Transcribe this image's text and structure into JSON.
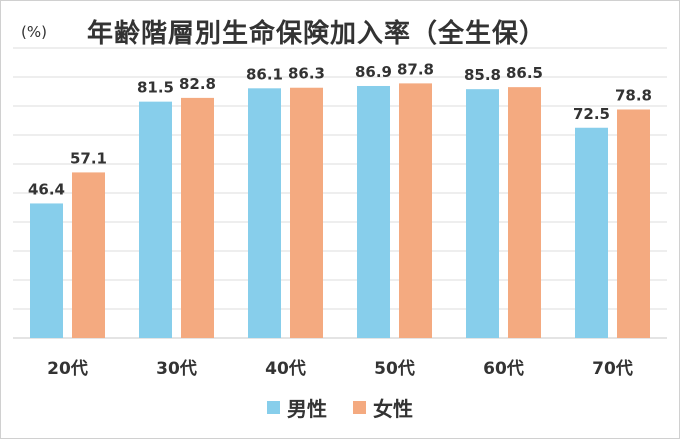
{
  "chart_data": {
    "type": "bar",
    "title": "年齢階層別生命保険加入率（全生保）",
    "unit_label": "(%)",
    "categories": [
      "20代",
      "30代",
      "40代",
      "50代",
      "60代",
      "70代"
    ],
    "series": [
      {
        "name": "男性",
        "color": "#87ceeb",
        "values": [
          46.4,
          81.5,
          86.1,
          86.9,
          85.8,
          72.5
        ]
      },
      {
        "name": "女性",
        "color": "#f4aa80",
        "values": [
          57.1,
          82.8,
          86.3,
          87.8,
          86.5,
          78.8
        ]
      }
    ],
    "ylim": [
      0,
      100
    ],
    "grid": true,
    "gridline_step": 10,
    "legend_position": "bottom-center"
  }
}
